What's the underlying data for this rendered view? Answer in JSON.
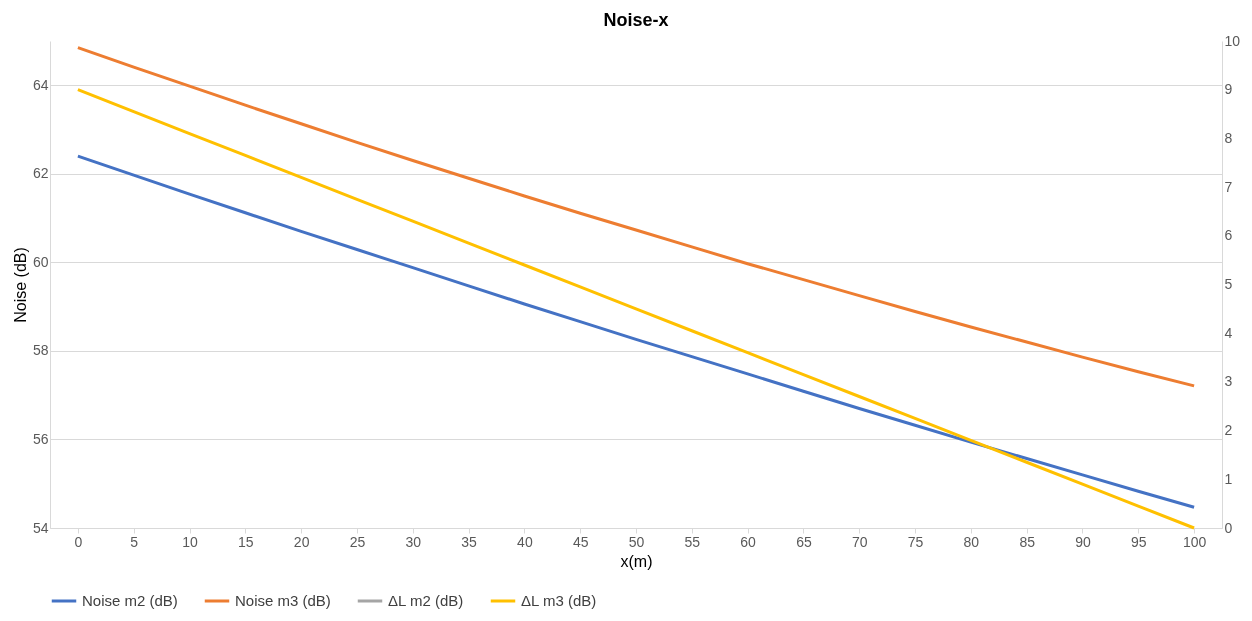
{
  "chart_data": {
    "type": "line",
    "title": "Noise-x",
    "xlabel": "x(m)",
    "ylabel": "Noise (dB)",
    "categories": [
      "0",
      "5",
      "10",
      "15",
      "20",
      "25",
      "30",
      "35",
      "40",
      "45",
      "50",
      "55",
      "60",
      "65",
      "70",
      "75",
      "80",
      "85",
      "90",
      "95",
      "100"
    ],
    "series": [
      {
        "name": "Noise m2 (dB)",
        "color": "#4472c4",
        "values": [
          62.4,
          61.97,
          61.54,
          61.12,
          60.7,
          60.29,
          59.88,
          59.47,
          59.06,
          58.66,
          58.26,
          57.87,
          57.48,
          57.09,
          56.7,
          56.32,
          55.94,
          55.57,
          55.2,
          54.83,
          54.47
        ]
      },
      {
        "name": "Noise m3 (dB)",
        "color": "#ed7d31",
        "values": [
          64.85,
          64.41,
          63.98,
          63.55,
          63.13,
          62.71,
          62.3,
          61.9,
          61.5,
          61.11,
          60.73,
          60.35,
          59.97,
          59.61,
          59.25,
          58.89,
          58.54,
          58.2,
          57.86,
          57.53,
          57.21
        ]
      },
      {
        "name": "ΔL m2 (dB)",
        "color": "#a5a5a5",
        "axis": "y2",
        "values": [
          null,
          null,
          null,
          null,
          null,
          null,
          null,
          null,
          null,
          null,
          null,
          null,
          null,
          null,
          null,
          null,
          null,
          null,
          null,
          null,
          null
        ]
      },
      {
        "name": "ΔL m3 (dB)",
        "color": "#ffc000",
        "axis": "y2",
        "values": [
          9,
          8.55,
          8.1,
          7.65,
          7.2,
          6.75,
          6.3,
          5.85,
          5.4,
          4.95,
          4.5,
          4.05,
          3.6,
          3.15,
          2.7,
          2.25,
          1.8,
          1.35,
          0.9,
          0.45,
          0
        ]
      }
    ],
    "ylim": [
      54,
      65
    ],
    "yticks": [
      54,
      56,
      58,
      60,
      62,
      64
    ],
    "y2lim": [
      0,
      10
    ],
    "y2ticks": [
      0,
      1,
      2,
      3,
      4,
      5,
      6,
      7,
      8,
      9,
      10
    ],
    "grid": "y",
    "legend": "bottom",
    "marker": "none",
    "line_style": "solid"
  }
}
